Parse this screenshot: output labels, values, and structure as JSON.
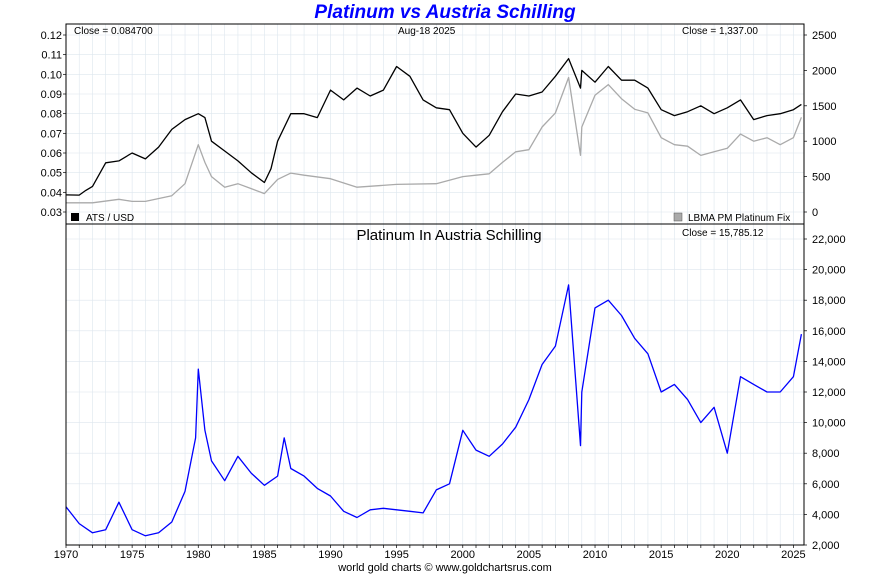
{
  "header": {
    "title": "Platinum vs Austria Schilling",
    "footer": "world gold charts © www.goldchartsrus.com"
  },
  "top_panel": {
    "close_left": "Close = 0.084700",
    "date": "Aug-18  2025",
    "close_right": "Close = 1,337.00",
    "legend_left": "ATS / USD",
    "legend_right": "LBMA PM Platinum Fix"
  },
  "bottom_panel": {
    "title": "Platinum In Austria Schilling",
    "close": "Close = 15,785.12"
  },
  "colors": {
    "ats": "#000000",
    "platinum": "#aaaaaa",
    "ratio": "#0000ff",
    "grid": "#dde6ee",
    "title": "#0000ff"
  },
  "chart_data": [
    {
      "type": "line",
      "title": "Platinum vs Austria Schilling",
      "x_ticks": [
        "1970",
        "1975",
        "1980",
        "1985",
        "1990",
        "1995",
        "2000",
        "2005",
        "2010",
        "2015",
        "2020",
        "2025"
      ],
      "y_left_ticks": [
        "0.12",
        "0.11",
        "0.10",
        "0.09",
        "0.08",
        "0.07",
        "0.06",
        "0.05",
        "0.04",
        "0.03"
      ],
      "y_right_ticks": [
        "2500",
        "2000",
        "1500",
        "1000",
        "500",
        "0"
      ],
      "ylim_left": [
        0.03,
        0.12
      ],
      "ylim_right": [
        0,
        2500
      ],
      "xlim": [
        1970,
        2025.8
      ],
      "grid": true,
      "series": [
        {
          "name": "ATS / USD",
          "axis": "left",
          "x": [
            1970,
            1971,
            1971.5,
            1972,
            1973,
            1974,
            1975,
            1976,
            1977,
            1978,
            1979,
            1980,
            1980.5,
            1981,
            1982,
            1983,
            1984,
            1985,
            1985.5,
            1986,
            1987,
            1988,
            1989,
            1990,
            1991,
            1992,
            1993,
            1994,
            1995,
            1996,
            1997,
            1998,
            1999,
            2000,
            2001,
            2002,
            2003,
            2004,
            2005,
            2006,
            2007,
            2008,
            2008.9,
            2009,
            2010,
            2011,
            2012,
            2013,
            2014,
            2015,
            2016,
            2017,
            2018,
            2019,
            2020,
            2021,
            2022,
            2023,
            2024,
            2025,
            2025.6
          ],
          "values": [
            0.0387,
            0.0386,
            0.041,
            0.043,
            0.055,
            0.056,
            0.06,
            0.057,
            0.063,
            0.072,
            0.077,
            0.08,
            0.078,
            0.066,
            0.061,
            0.056,
            0.05,
            0.045,
            0.052,
            0.066,
            0.08,
            0.08,
            0.078,
            0.092,
            0.087,
            0.093,
            0.089,
            0.092,
            0.104,
            0.099,
            0.087,
            0.083,
            0.082,
            0.07,
            0.063,
            0.069,
            0.081,
            0.09,
            0.089,
            0.091,
            0.099,
            0.108,
            0.093,
            0.102,
            0.096,
            0.104,
            0.097,
            0.097,
            0.093,
            0.082,
            0.079,
            0.081,
            0.084,
            0.08,
            0.083,
            0.087,
            0.077,
            0.079,
            0.08,
            0.082,
            0.0847
          ]
        },
        {
          "name": "LBMA PM Platinum Fix",
          "axis": "right",
          "x": [
            1970,
            1972,
            1974,
            1975,
            1976,
            1978,
            1979,
            1980,
            1980.5,
            1981,
            1982,
            1983,
            1984,
            1985,
            1986,
            1987,
            1988,
            1990,
            1992,
            1995,
            1998,
            2000,
            2001,
            2002,
            2003,
            2004,
            2005,
            2006,
            2007,
            2008,
            2008.9,
            2009,
            2010,
            2011,
            2012,
            2013,
            2014,
            2015,
            2016,
            2017,
            2018,
            2019,
            2020,
            2021,
            2022,
            2023,
            2024,
            2025,
            2025.6
          ],
          "values": [
            130,
            130,
            180,
            150,
            150,
            230,
            400,
            950,
            700,
            500,
            350,
            400,
            330,
            260,
            460,
            550,
            520,
            470,
            350,
            390,
            400,
            500,
            520,
            540,
            700,
            850,
            880,
            1200,
            1400,
            1900,
            800,
            1200,
            1650,
            1800,
            1600,
            1450,
            1400,
            1050,
            950,
            930,
            800,
            850,
            900,
            1100,
            1000,
            1050,
            950,
            1050,
            1337
          ]
        }
      ]
    },
    {
      "type": "line",
      "title": "Platinum In Austria Schilling",
      "x_ticks": [
        "1970",
        "1975",
        "1980",
        "1985",
        "1990",
        "1995",
        "2000",
        "2005",
        "2010",
        "2015",
        "2020",
        "2025"
      ],
      "y_right_ticks": [
        "22,000",
        "20,000",
        "18,000",
        "16,000",
        "14,000",
        "12,000",
        "10,000",
        "8,000",
        "6,000",
        "4,000",
        "2,000"
      ],
      "ylim": [
        2000,
        22000
      ],
      "xlim": [
        1970,
        2025.8
      ],
      "grid": true,
      "series": [
        {
          "name": "Platinum In Austria Schilling",
          "x": [
            1970,
            1971,
            1972,
            1973,
            1974,
            1975,
            1976,
            1977,
            1978,
            1979,
            1979.8,
            1980,
            1980.5,
            1981,
            1982,
            1983,
            1984,
            1985,
            1986,
            1986.5,
            1987,
            1988,
            1989,
            1990,
            1991,
            1992,
            1993,
            1994,
            1995,
            1996,
            1997,
            1998,
            1999,
            2000,
            2001,
            2002,
            2003,
            2004,
            2005,
            2006,
            2007,
            2008,
            2008.9,
            2009,
            2010,
            2011,
            2012,
            2013,
            2014,
            2015,
            2016,
            2017,
            2018,
            2019,
            2020,
            2021,
            2022,
            2023,
            2024,
            2025,
            2025.6
          ],
          "values": [
            4500,
            3400,
            2800,
            3000,
            4800,
            3000,
            2600,
            2800,
            3500,
            5500,
            9000,
            13500,
            9500,
            7500,
            6200,
            7800,
            6700,
            5900,
            6500,
            9000,
            7000,
            6500,
            5700,
            5200,
            4200,
            3800,
            4300,
            4400,
            4300,
            4200,
            4100,
            5600,
            6000,
            9500,
            8200,
            7800,
            8600,
            9700,
            11500,
            13800,
            15000,
            19000,
            8500,
            12000,
            17500,
            18000,
            17000,
            15500,
            14500,
            12000,
            12500,
            11500,
            10000,
            11000,
            8000,
            13000,
            12500,
            12000,
            12000,
            13000,
            15785
          ]
        }
      ]
    }
  ]
}
